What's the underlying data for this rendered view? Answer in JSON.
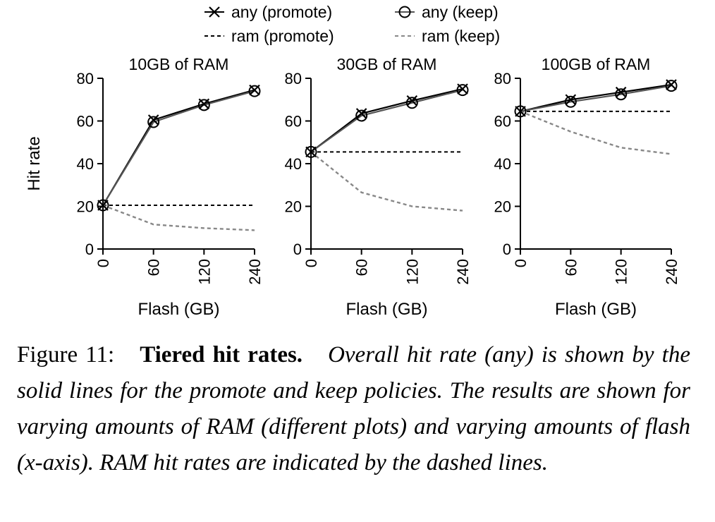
{
  "legend": {
    "any_promote": "any (promote)",
    "any_keep": "any (keep)",
    "ram_promote": "ram (promote)",
    "ram_keep": "ram (keep)"
  },
  "colors": {
    "any_promote": "#000000",
    "any_keep": "#555555",
    "ram_promote": "#000000",
    "ram_keep": "#888888"
  },
  "y_axis_label": "Hit rate",
  "caption": {
    "label": "Figure 11:",
    "title": "Tiered hit rates.",
    "body": "Overall hit rate (any) is shown by the solid lines for the promote and keep policies. The results are shown for varying amounts of RAM (different plots) and varying amounts of flash (x-axis). RAM hit rates are indicated by the dashed lines."
  },
  "chart_data": [
    {
      "type": "line",
      "title": "10GB of RAM",
      "xlabel": "Flash (GB)",
      "ylabel": "Hit rate",
      "x": [
        0,
        60,
        120,
        240
      ],
      "x_ticks": [
        "0",
        "60",
        "120",
        "240"
      ],
      "x_scale": "categorical-evenly-spaced",
      "ylim": [
        0,
        80
      ],
      "y_ticks": [
        "0",
        "20",
        "40",
        "60",
        "80"
      ],
      "series": [
        {
          "name": "any (promote)",
          "marker": "x",
          "style": "solid",
          "values": [
            20.5,
            60.5,
            68,
            74.5
          ]
        },
        {
          "name": "any (keep)",
          "marker": "o",
          "style": "solid",
          "values": [
            20.5,
            59.5,
            67.5,
            74
          ]
        },
        {
          "name": "ram (promote)",
          "marker": "none",
          "style": "dashed",
          "values": [
            20.5,
            20.5,
            20.5,
            20.5
          ]
        },
        {
          "name": "ram (keep)",
          "marker": "none",
          "style": "dashed",
          "values": [
            20.5,
            11.5,
            9.8,
            8.8
          ]
        }
      ]
    },
    {
      "type": "line",
      "title": "30GB of RAM",
      "xlabel": "Flash (GB)",
      "ylabel": "",
      "x": [
        0,
        60,
        120,
        240
      ],
      "x_ticks": [
        "0",
        "60",
        "120",
        "240"
      ],
      "x_scale": "categorical-evenly-spaced",
      "ylim": [
        0,
        80
      ],
      "y_ticks": [
        "0",
        "20",
        "40",
        "60",
        "80"
      ],
      "series": [
        {
          "name": "any (promote)",
          "marker": "x",
          "style": "solid",
          "values": [
            45.5,
            63.5,
            69.5,
            75
          ]
        },
        {
          "name": "any (keep)",
          "marker": "o",
          "style": "solid",
          "values": [
            45.5,
            62.5,
            68.5,
            74.5
          ]
        },
        {
          "name": "ram (promote)",
          "marker": "none",
          "style": "dashed",
          "values": [
            45.5,
            45.5,
            45.5,
            45.5
          ]
        },
        {
          "name": "ram (keep)",
          "marker": "none",
          "style": "dashed",
          "values": [
            45.5,
            26.5,
            20,
            18
          ]
        }
      ]
    },
    {
      "type": "line",
      "title": "100GB of RAM",
      "xlabel": "Flash (GB)",
      "ylabel": "",
      "x": [
        0,
        60,
        120,
        240
      ],
      "x_ticks": [
        "0",
        "60",
        "120",
        "240"
      ],
      "x_scale": "categorical-evenly-spaced",
      "ylim": [
        0,
        80
      ],
      "y_ticks": [
        "0",
        "20",
        "40",
        "60",
        "80"
      ],
      "series": [
        {
          "name": "any (promote)",
          "marker": "x",
          "style": "solid",
          "values": [
            64.5,
            70,
            73.5,
            77
          ]
        },
        {
          "name": "any (keep)",
          "marker": "o",
          "style": "solid",
          "values": [
            64.5,
            69,
            72.5,
            76.5
          ]
        },
        {
          "name": "ram (promote)",
          "marker": "none",
          "style": "dashed",
          "values": [
            64.5,
            64.5,
            64.5,
            64.5
          ]
        },
        {
          "name": "ram (keep)",
          "marker": "none",
          "style": "dashed",
          "values": [
            64.5,
            55,
            47.5,
            44.5
          ]
        }
      ]
    }
  ]
}
